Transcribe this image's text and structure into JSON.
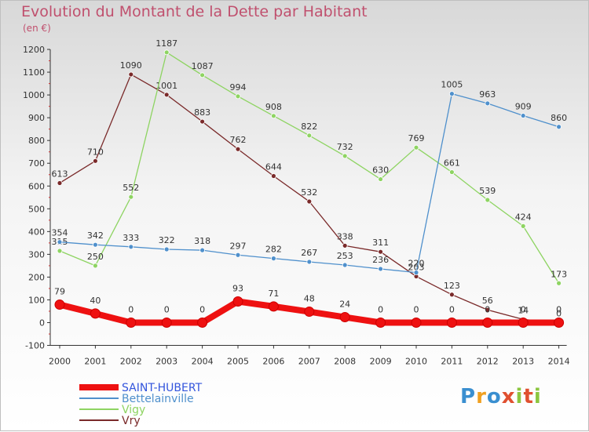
{
  "header": {
    "title": "Evolution du Montant de la Dette par Habitant",
    "unit": "(en €)"
  },
  "logo": {
    "text": "Proxiti",
    "colors": [
      "#3a8fd0",
      "#f0a020",
      "#3a8fd0",
      "#e05030",
      "#8cc63f",
      "#e05030",
      "#8cc63f"
    ]
  },
  "chart_data": {
    "type": "line",
    "title": "Evolution du Montant de la Dette par Habitant",
    "ylabel": "(en €)",
    "xlabel": "",
    "ylim": [
      -100,
      1200
    ],
    "yticks": [
      -100,
      0,
      100,
      200,
      300,
      400,
      500,
      600,
      700,
      800,
      900,
      1000,
      1100,
      1200
    ],
    "grid": false,
    "legend_position": "bottom-left",
    "x": [
      "2000",
      "2001",
      "2002",
      "2003",
      "2004",
      "2005",
      "2006",
      "2007",
      "2008",
      "2009",
      "2010",
      "2011",
      "2012",
      "2013",
      "2014"
    ],
    "series": [
      {
        "name": "SAINT-HUBERT",
        "color": "#ee1111",
        "legend_color": "#3355dd",
        "values": [
          79,
          40,
          0,
          0,
          0,
          93,
          71,
          48,
          24,
          0,
          0,
          0,
          0,
          0,
          0
        ]
      },
      {
        "name": "Bettelainville",
        "color": "#4f90cc",
        "legend_color": "#4f90cc",
        "values": [
          354,
          342,
          333,
          322,
          318,
          297,
          282,
          267,
          253,
          236,
          220,
          1005,
          963,
          909,
          860
        ]
      },
      {
        "name": "Vigy",
        "color": "#8ed462",
        "legend_color": "#8ed462",
        "values": [
          315,
          250,
          552,
          1187,
          1087,
          994,
          908,
          822,
          732,
          630,
          769,
          661,
          539,
          424,
          173
        ]
      },
      {
        "name": "Vry",
        "color": "#7a2a2a",
        "legend_color": "#7a2a2a",
        "values": [
          613,
          710,
          1090,
          1001,
          883,
          762,
          644,
          532,
          338,
          311,
          203,
          123,
          56,
          14,
          0
        ]
      }
    ]
  }
}
